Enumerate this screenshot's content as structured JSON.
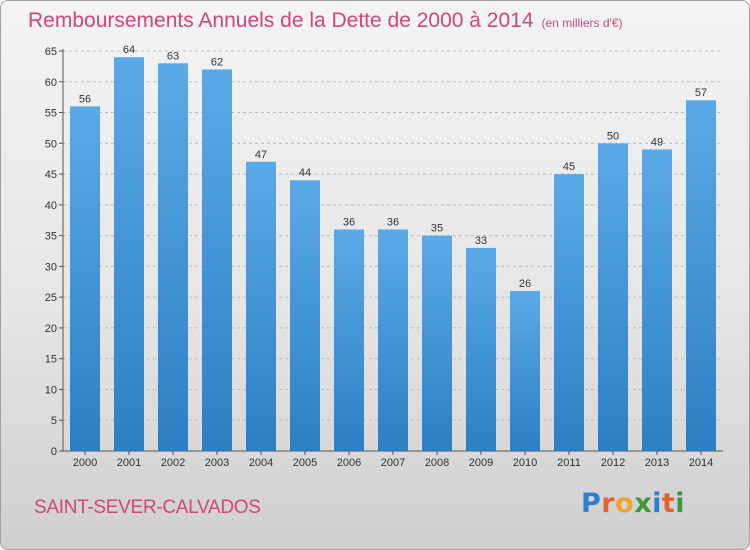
{
  "chart_data": {
    "type": "bar",
    "title": "Remboursements Annuels de la Dette de 2000 à 2014",
    "unit_label": "(en milliers d'€)",
    "categories": [
      "2000",
      "2001",
      "2002",
      "2003",
      "2004",
      "2005",
      "2006",
      "2007",
      "2008",
      "2009",
      "2010",
      "2011",
      "2012",
      "2013",
      "2014"
    ],
    "values": [
      56,
      64,
      63,
      62,
      47,
      44,
      36,
      36,
      35,
      33,
      26,
      45,
      50,
      49,
      57
    ],
    "ylim": [
      0,
      65
    ],
    "yticks": [
      0,
      5,
      10,
      15,
      20,
      25,
      30,
      35,
      40,
      45,
      50,
      55,
      60,
      65
    ],
    "xlabel": "",
    "ylabel": "",
    "grid": true,
    "bar_color": "#5aaae8",
    "bar_color_dark": "#2e7fc2"
  },
  "footer": {
    "commune": "SAINT-SEVER-CALVADOS",
    "logo_letters": [
      {
        "char": "P",
        "color": "#2f7fd0"
      },
      {
        "char": "r",
        "color": "#e8612c"
      },
      {
        "char": "o",
        "color": "#f0a22a"
      },
      {
        "char": "x",
        "color": "#3a9a3a"
      },
      {
        "char": "i",
        "color": "#2f7fd0"
      },
      {
        "char": "t",
        "color": "#e8612c"
      },
      {
        "char": "i",
        "color": "#3a9a3a"
      }
    ]
  },
  "colors": {
    "title": "#d4457a"
  }
}
